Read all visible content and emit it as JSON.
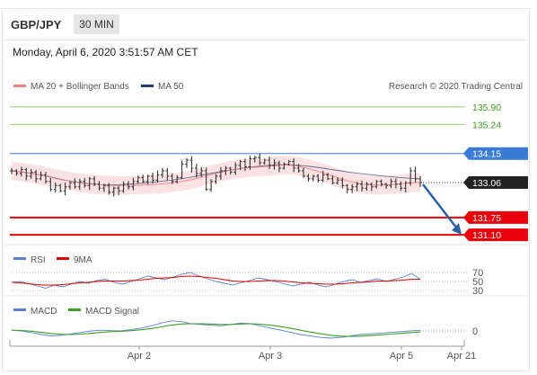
{
  "header": {
    "symbol": "GBP/JPY",
    "timeframe": "30 MIN"
  },
  "datetime": "Monday, April 6, 2020 3:51:57 AM CET",
  "credit": "Research © 2020 Trading Central",
  "colors": {
    "ma20": "#f08080",
    "ma50": "#1f3d7a",
    "bollinger": "#fadbdb",
    "resistance": "#8fcf6a",
    "pivot": "#3a7bd5",
    "support": "#e8000b",
    "current": "#222222",
    "arrow": "#2a5fa8",
    "rsi": "#5b7fd6",
    "rsi_ma": "#e00000",
    "macd": "#5b7fd6",
    "macd_signal": "#3aa020"
  },
  "chart_data": [
    {
      "type": "line",
      "title": "",
      "legend": [
        "MA 20 + Bollinger Bands",
        "MA 50"
      ],
      "legend_position": "top-left",
      "ylim": [
        130.8,
        136.4
      ],
      "x_ticks": [
        "Apr 2",
        "Apr 3",
        "Apr 5",
        "Apr 21"
      ],
      "levels": [
        {
          "label": "135.90",
          "value": 135.9,
          "kind": "resistance"
        },
        {
          "label": "135.24",
          "value": 135.24,
          "kind": "resistance"
        },
        {
          "label": "134.15",
          "value": 134.15,
          "kind": "pivot"
        },
        {
          "label": "133.06",
          "value": 133.06,
          "kind": "current"
        },
        {
          "label": "131.75",
          "value": 131.75,
          "kind": "support"
        },
        {
          "label": "131.10",
          "value": 131.1,
          "kind": "support"
        }
      ],
      "series": [
        {
          "kind": "price",
          "values": [
            133.5,
            133.4,
            133.55,
            133.3,
            133.45,
            133.2,
            133.35,
            133.1,
            132.8,
            132.95,
            132.75,
            132.9,
            133.05,
            132.9,
            133.1,
            132.95,
            133.2,
            133.0,
            132.85,
            132.95,
            132.7,
            132.85,
            132.75,
            133.0,
            132.9,
            133.1,
            133.25,
            133.1,
            133.3,
            133.15,
            133.35,
            133.5,
            133.3,
            133.1,
            133.25,
            133.75,
            133.9,
            133.6,
            133.4,
            133.5,
            132.8,
            133.1,
            133.3,
            133.5,
            133.6,
            133.45,
            133.7,
            133.85,
            133.65,
            133.95,
            134.0,
            133.8,
            133.9,
            133.7,
            133.8,
            133.6,
            133.75,
            133.85,
            133.6,
            133.5,
            133.3,
            133.2,
            133.3,
            133.15,
            133.35,
            133.2,
            133.05,
            133.15,
            132.95,
            132.8,
            132.9,
            133.0,
            132.85,
            133.0,
            132.9,
            133.1,
            133.0,
            132.95,
            133.1,
            133.0,
            132.85,
            133.05,
            133.5,
            133.2,
            133.06
          ]
        },
        {
          "name": "MA 20",
          "values": [
            133.5,
            133.45,
            133.38,
            133.3,
            133.2,
            133.12,
            133.05,
            133.0,
            132.97,
            132.95,
            132.95,
            132.96,
            132.98,
            133.0,
            133.05,
            133.1,
            133.18,
            133.3,
            133.4,
            133.5,
            133.58,
            133.62,
            133.65,
            133.68,
            133.72,
            133.7,
            133.6,
            133.48,
            133.35,
            133.2,
            133.08,
            133.0,
            132.96,
            132.97,
            133.0,
            133.05,
            133.06
          ]
        },
        {
          "name": "MA 50",
          "values": [
            133.5,
            133.42,
            133.3,
            133.15,
            133.05,
            132.98,
            132.98,
            133.02,
            133.08,
            133.15,
            133.25,
            133.38,
            133.5,
            133.6,
            133.68,
            133.73,
            133.72,
            133.65,
            133.55,
            133.45,
            133.37,
            133.3,
            133.24,
            133.2
          ]
        }
      ]
    },
    {
      "type": "line",
      "legend": [
        "RSI",
        "9MA"
      ],
      "legend_position": "top-left",
      "ylim": [
        20,
        80
      ],
      "y_ticks": [
        "70",
        "50",
        "30"
      ],
      "series": [
        {
          "name": "RSI",
          "values": [
            48,
            50,
            45,
            40,
            35,
            42,
            38,
            44,
            50,
            46,
            52,
            55,
            48,
            44,
            50,
            56,
            62,
            58,
            54,
            60,
            66,
            70,
            62,
            56,
            50,
            46,
            42,
            48,
            52,
            58,
            54,
            50,
            45,
            40,
            44,
            48,
            42,
            38,
            44,
            50,
            54,
            48,
            52,
            56,
            50,
            55,
            60,
            68,
            55
          ]
        },
        {
          "name": "9MA",
          "values": [
            48,
            47,
            45,
            43,
            42,
            42,
            43,
            45,
            47,
            48,
            50,
            51,
            51,
            51,
            52,
            53,
            55,
            57,
            58,
            59,
            61,
            62,
            61,
            59,
            57,
            54,
            51,
            50,
            50,
            51,
            52,
            52,
            51,
            49,
            47,
            46,
            45,
            44,
            44,
            45,
            47,
            48,
            49,
            51,
            51,
            52,
            53,
            55,
            55
          ]
        }
      ]
    },
    {
      "type": "line",
      "legend": [
        "MACD",
        "MACD Signal"
      ],
      "legend_position": "top-left",
      "ylim": [
        -1,
        1
      ],
      "y_ticks": [
        "0"
      ],
      "series": [
        {
          "name": "MACD",
          "values": [
            0.05,
            0.0,
            -0.12,
            -0.25,
            -0.35,
            -0.3,
            -0.2,
            -0.1,
            0.0,
            0.05,
            0.02,
            0.0,
            0.1,
            0.2,
            0.35,
            0.55,
            0.7,
            0.65,
            0.5,
            0.45,
            0.4,
            0.35,
            0.45,
            0.55,
            0.5,
            0.35,
            0.2,
            0.05,
            -0.1,
            -0.25,
            -0.35,
            -0.45,
            -0.5,
            -0.45,
            -0.35,
            -0.25,
            -0.2,
            -0.15,
            -0.1,
            -0.05,
            0.0,
            0.05
          ]
        },
        {
          "name": "MACD Signal",
          "values": [
            0.05,
            0.03,
            -0.02,
            -0.1,
            -0.18,
            -0.24,
            -0.25,
            -0.22,
            -0.16,
            -0.1,
            -0.05,
            -0.02,
            0.02,
            0.08,
            0.16,
            0.28,
            0.4,
            0.48,
            0.5,
            0.5,
            0.48,
            0.45,
            0.45,
            0.48,
            0.5,
            0.47,
            0.4,
            0.3,
            0.18,
            0.05,
            -0.08,
            -0.2,
            -0.3,
            -0.36,
            -0.38,
            -0.36,
            -0.32,
            -0.27,
            -0.22,
            -0.17,
            -0.12,
            -0.07
          ]
        }
      ]
    }
  ]
}
